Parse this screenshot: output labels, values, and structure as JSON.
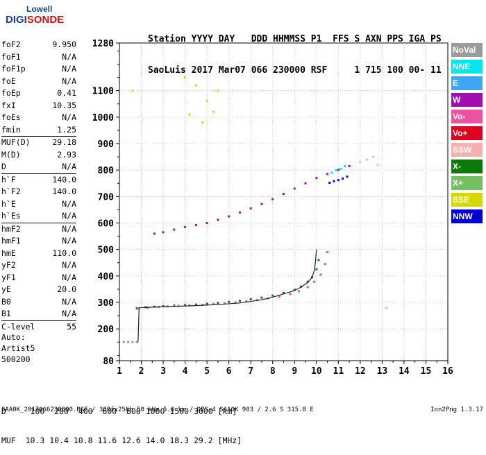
{
  "logo": {
    "line1": "Lowell",
    "line2a": "DIGI",
    "line2b": "SONDE"
  },
  "header": {
    "line1": "Station YYYY DAY   DDD HHMMSS P1  FFS S AXN PPS IGA PS",
    "line2": "SaoLuis 2017 Mar07 066 230000 RSF     1 715 100 00- 11"
  },
  "params": {
    "group1": [
      {
        "k": "foF2",
        "v": "9.950"
      },
      {
        "k": "foF1",
        "v": "N/A"
      },
      {
        "k": "foF1p",
        "v": "N/A"
      },
      {
        "k": "foE",
        "v": "N/A"
      },
      {
        "k": "foEp",
        "v": "0.41"
      },
      {
        "k": "fxI",
        "v": "10.35"
      },
      {
        "k": "foEs",
        "v": "N/A"
      },
      {
        "k": "fmin",
        "v": "1.25"
      }
    ],
    "group2": [
      {
        "k": "MUF(D)",
        "v": "29.18"
      },
      {
        "k": "M(D)",
        "v": "2.93"
      },
      {
        "k": "D",
        "v": "N/A"
      }
    ],
    "group3": [
      {
        "k": "h`F",
        "v": "140.0"
      },
      {
        "k": "h`F2",
        "v": "140.0"
      },
      {
        "k": "h`E",
        "v": "N/A"
      },
      {
        "k": "h`Es",
        "v": "N/A"
      }
    ],
    "group4": [
      {
        "k": "hmF2",
        "v": "N/A"
      },
      {
        "k": "hmF1",
        "v": "N/A"
      },
      {
        "k": "hmE",
        "v": "110.0"
      },
      {
        "k": "yF2",
        "v": "N/A"
      },
      {
        "k": "yF1",
        "v": "N/A"
      },
      {
        "k": "yE",
        "v": "20.0"
      },
      {
        "k": "B0",
        "v": "N/A"
      },
      {
        "k": "B1",
        "v": "N/A"
      }
    ],
    "group5": [
      {
        "k": "C-level",
        "v": "55"
      }
    ]
  },
  "auto": {
    "l1": "Auto:",
    "l2": "Artist5",
    "l3": "500200"
  },
  "legend": [
    {
      "label": "NoVal",
      "bg": "#9a9a9a",
      "fg": "#ffffff"
    },
    {
      "label": "NNE",
      "bg": "#00e5ee",
      "fg": "#ffffff"
    },
    {
      "label": "E",
      "bg": "#3fa6f5",
      "fg": "#ffffff"
    },
    {
      "label": "W",
      "bg": "#a010b0",
      "fg": "#ffffff"
    },
    {
      "label": "Vo-",
      "bg": "#f050a0",
      "fg": "#ffffff"
    },
    {
      "label": "Vo+",
      "bg": "#e00020",
      "fg": "#ffffff"
    },
    {
      "label": "SSW",
      "bg": "#f5b0b0",
      "fg": "#ffffff"
    },
    {
      "label": "X-",
      "bg": "#0a7a0a",
      "fg": "#ffffff"
    },
    {
      "label": "X+",
      "bg": "#74c060",
      "fg": "#ffffff"
    },
    {
      "label": "SSE",
      "bg": "#d8d800",
      "fg": "#ffffff"
    },
    {
      "label": "NNW",
      "bg": "#0000d0",
      "fg": "#ffffff"
    }
  ],
  "bottom": {
    "l1": "D     100  200  400  600  800 1000 1500 3000 [km]",
    "l2": "MUF  10.3 10.4 10.8 11.6 12.6 14.0 18.3 29.2 [MHz]"
  },
  "footer": {
    "left": "SAA0K_2017066230000.RSF / 300fx256h 50 kHz 5.0 km / DPS-4 SAA0K 903 / 2.6 S 315.8 E",
    "right": "Ion2Png 1.3.17"
  },
  "chart_data": {
    "type": "scatter",
    "title": "",
    "xlabel": "",
    "ylabel": "",
    "xlim": [
      1,
      16
    ],
    "ylim": [
      80,
      1280
    ],
    "x_ticks": [
      1,
      2,
      3,
      4,
      5,
      6,
      7,
      8,
      9,
      10,
      11,
      12,
      13,
      14,
      15,
      16
    ],
    "y_ticks": [
      80,
      200,
      300,
      400,
      500,
      600,
      700,
      800,
      900,
      1000,
      1100,
      1280
    ],
    "series": [
      {
        "name": "X-",
        "color": "#0a7a0a",
        "x": [
          1.8,
          2.2,
          2.6,
          3.0,
          3.5,
          4.0,
          4.5,
          5.0,
          5.5,
          6.0,
          6.5,
          7.0,
          7.5,
          8.0,
          8.5,
          9.0,
          9.3,
          9.6,
          9.8,
          10.0,
          10.1
        ],
        "y": [
          278,
          282,
          284,
          286,
          288,
          290,
          292,
          295,
          298,
          302,
          306,
          312,
          318,
          326,
          336,
          348,
          360,
          378,
          395,
          425,
          460
        ]
      },
      {
        "name": "Vo-",
        "color": "#f050a0",
        "x": [
          1.85,
          2.3,
          2.8,
          3.2,
          3.7,
          4.2,
          4.8,
          5.3,
          5.8,
          6.3,
          6.8,
          7.3,
          7.8,
          8.3,
          8.8,
          9.2,
          9.6,
          9.9,
          10.2,
          10.4,
          10.5
        ],
        "y": [
          276,
          280,
          283,
          285,
          287,
          289,
          291,
          294,
          297,
          300,
          304,
          309,
          315,
          322,
          332,
          342,
          358,
          378,
          405,
          445,
          490
        ]
      },
      {
        "name": "W",
        "color": "#a010b0",
        "x": [
          2.6,
          3.0,
          3.5,
          4.0,
          4.5,
          5.0,
          5.5,
          6.0,
          6.5,
          7.0,
          7.5,
          8.0,
          8.5,
          9.0,
          9.5,
          10.0,
          10.5,
          11.0,
          11.5
        ],
        "y": [
          560,
          565,
          575,
          585,
          592,
          600,
          612,
          625,
          640,
          655,
          672,
          690,
          710,
          730,
          750,
          770,
          785,
          800,
          815
        ]
      },
      {
        "name": "NNW",
        "color": "#0000d0",
        "x": [
          10.6,
          10.8,
          11.0,
          11.2,
          11.4
        ],
        "y": [
          752,
          758,
          762,
          768,
          775
        ]
      },
      {
        "name": "NNE",
        "color": "#00e5ee",
        "x": [
          10.7,
          10.9,
          11.1,
          11.3
        ],
        "y": [
          790,
          800,
          805,
          815
        ]
      },
      {
        "name": "SSE",
        "color": "#d8d800",
        "x": [
          4.0,
          4.5,
          5.0,
          5.5,
          4.2,
          4.8,
          5.3,
          1.6
        ],
        "y": [
          1150,
          1120,
          1060,
          1100,
          1010,
          980,
          1020,
          1100
        ]
      },
      {
        "name": "SSW",
        "color": "#f5b0b0",
        "x": [
          12.0,
          12.3,
          12.6,
          12.8,
          13.2
        ],
        "y": [
          830,
          840,
          850,
          820,
          280
        ]
      },
      {
        "name": "NoVal",
        "color": "#9a9a9a",
        "x": [
          1.2,
          1.4,
          1.6,
          1.8
        ],
        "y": [
          150,
          150,
          150,
          150
        ]
      }
    ],
    "trace": {
      "x": [
        1.85,
        1.9,
        2.5,
        3.5,
        4.5,
        5.5,
        6.5,
        7.5,
        8.0,
        8.5,
        9.0,
        9.3,
        9.6,
        9.8,
        9.9,
        9.95,
        10.0
      ],
      "y": [
        150,
        280,
        282,
        285,
        288,
        292,
        298,
        310,
        320,
        332,
        345,
        358,
        375,
        395,
        420,
        450,
        500
      ]
    }
  }
}
